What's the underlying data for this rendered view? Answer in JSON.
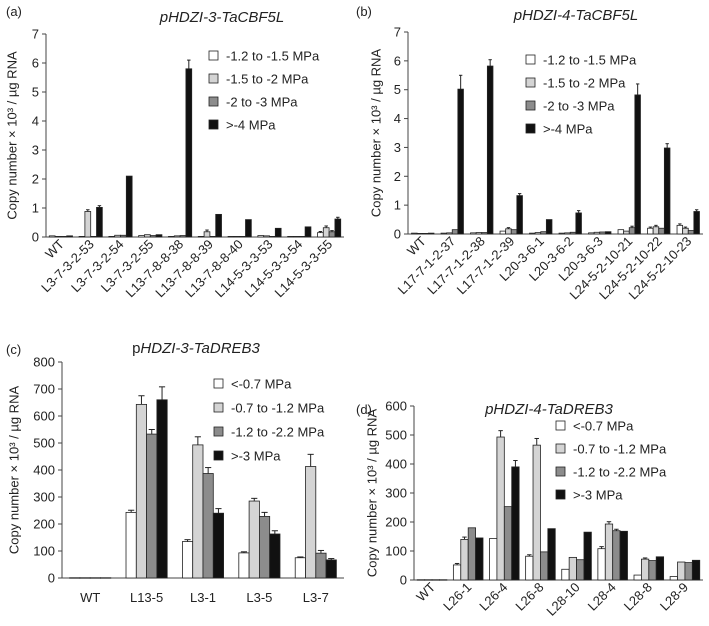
{
  "chart_data": [
    {
      "panel_label": "(a)",
      "type": "bar",
      "title": "pHDZI-3-TaCBF5L",
      "title_italic": true,
      "ylabel": "Copy number × 10³ / µg RNA",
      "ylim": [
        0,
        7
      ],
      "yticks": [
        0,
        1,
        2,
        3,
        4,
        5,
        6,
        7
      ],
      "categories": [
        "WT",
        "L3-7-3-2-53",
        "L3-7-3-2-54",
        "L3-7-3-2-55",
        "L13-7-8-8-38",
        "L13-7-8-8-39",
        "L13-7-8-8-40",
        "L14-5-3-3-53",
        "L14-5-3-3-54",
        "L14-5-3-3-55"
      ],
      "series": [
        {
          "name": "-1.2 to -1.5 MPa",
          "color": "#ffffff",
          "values": [
            0.04,
            0.02,
            0.02,
            0.05,
            0.02,
            0.02,
            0.02,
            0.05,
            0.02,
            0.15
          ],
          "errors": [
            0,
            0,
            0,
            0,
            0,
            0,
            0,
            0,
            0,
            0.04
          ]
        },
        {
          "name": "-1.5 to -2 MPa",
          "color": "#d4d4d4",
          "values": [
            0.02,
            0.88,
            0.06,
            0.08,
            0.04,
            0.18,
            0.02,
            0.04,
            0.02,
            0.32
          ],
          "errors": [
            0,
            0.06,
            0,
            0,
            0,
            0.06,
            0,
            0,
            0,
            0.06
          ]
        },
        {
          "name": "-2 to -3 MPa",
          "color": "#8c8c8c",
          "values": [
            0.02,
            0.02,
            0.06,
            0.05,
            0.05,
            0.02,
            0.02,
            0.02,
            0.02,
            0.18
          ],
          "errors": [
            0,
            0,
            0,
            0,
            0,
            0,
            0,
            0,
            0,
            0.04
          ]
        },
        {
          "name": ">-4 MPa",
          "color": "#111111",
          "values": [
            0.04,
            1.02,
            2.1,
            0.08,
            5.8,
            0.78,
            0.6,
            0.3,
            0.35,
            0.62
          ],
          "errors": [
            0,
            0.06,
            0,
            0,
            0.3,
            0,
            0,
            0,
            0,
            0.06
          ]
        }
      ]
    },
    {
      "panel_label": "(b)",
      "type": "bar",
      "title": "pHDZI-4-TaCBF5L",
      "title_italic": true,
      "ylabel": "Copy number × 10³ / µg RNA",
      "ylim": [
        0,
        7
      ],
      "yticks": [
        0,
        1,
        2,
        3,
        4,
        5,
        6,
        7
      ],
      "categories": [
        "WT",
        "L17-7-1-2-37",
        "L17-7-1-2-38",
        "L17-7-1-2-39",
        "L20-3-6-1",
        "L20-3-6-2",
        "L20-3-6-3",
        "L24-5-2-10-21",
        "L24-5-2-10-22",
        "L24-5-2-10-23"
      ],
      "series": [
        {
          "name": "-1.2 to -1.5 MPa",
          "color": "#ffffff",
          "values": [
            0.03,
            0.03,
            0.04,
            0.1,
            0.03,
            0.03,
            0.04,
            0.15,
            0.2,
            0.3
          ],
          "errors": [
            0,
            0,
            0,
            0,
            0,
            0,
            0,
            0,
            0.04,
            0.05
          ]
        },
        {
          "name": "-1.5 to -2 MPa",
          "color": "#d4d4d4",
          "values": [
            0.02,
            0.04,
            0.05,
            0.18,
            0.05,
            0.04,
            0.06,
            0.1,
            0.25,
            0.2
          ],
          "errors": [
            0,
            0,
            0,
            0.04,
            0,
            0,
            0,
            0,
            0.05,
            0.04
          ]
        },
        {
          "name": "-2 to -3 MPa",
          "color": "#8c8c8c",
          "values": [
            0.02,
            0.15,
            0.05,
            0.15,
            0.08,
            0.06,
            0.07,
            0.22,
            0.2,
            0.12
          ],
          "errors": [
            0,
            0,
            0,
            0,
            0,
            0,
            0,
            0.05,
            0,
            0
          ]
        },
        {
          "name": ">-4 MPa",
          "color": "#111111",
          "values": [
            0.03,
            5.02,
            5.82,
            1.33,
            0.5,
            0.73,
            0.08,
            4.82,
            2.98,
            0.78
          ],
          "errors": [
            0,
            0.48,
            0.22,
            0.07,
            0,
            0.08,
            0,
            0.38,
            0.15,
            0.06
          ]
        }
      ]
    },
    {
      "panel_label": "(c)",
      "type": "bar",
      "title_prefix": "p",
      "title": "HDZI-3-TaDREB3",
      "title_italic": true,
      "ylabel": "Copy number × 10³ / µg RNA",
      "ylim": [
        0,
        800
      ],
      "yticks": [
        0,
        100,
        200,
        300,
        400,
        500,
        600,
        700,
        800
      ],
      "categories": [
        "WT",
        "L13-5",
        "L3-1",
        "L3-5",
        "L3-7"
      ],
      "series": [
        {
          "name": "<-0.7 MPa",
          "color": "#ffffff",
          "values": [
            1,
            243,
            135,
            93,
            75
          ],
          "errors": [
            0,
            8,
            7,
            4,
            3
          ]
        },
        {
          "name": "-0.7 to -1.2 MPa",
          "color": "#d4d4d4",
          "values": [
            1,
            643,
            493,
            285,
            413
          ],
          "errors": [
            0,
            32,
            30,
            10,
            45
          ]
        },
        {
          "name": "-1.2 to -2.2 MPa",
          "color": "#8c8c8c",
          "values": [
            1,
            533,
            387,
            228,
            92
          ],
          "errors": [
            0,
            17,
            22,
            15,
            10
          ]
        },
        {
          "name": ">-3 MPa",
          "color": "#111111",
          "values": [
            1,
            660,
            240,
            163,
            67
          ],
          "errors": [
            0,
            48,
            17,
            12,
            5
          ]
        }
      ]
    },
    {
      "panel_label": "(d)",
      "type": "bar",
      "title": "pHDZI-4-TaDREB3",
      "title_italic": true,
      "ylabel": "Copy number × 10³ / µg RNA",
      "ylim": [
        0,
        600
      ],
      "yticks": [
        0,
        100,
        200,
        300,
        400,
        500,
        600
      ],
      "categories": [
        "WT",
        "L26-1",
        "L26-4",
        "L26-8",
        "L28-10",
        "L28-4",
        "L28-8",
        "L28-9"
      ],
      "series": [
        {
          "name": "<-0.7 MPa",
          "color": "#ffffff",
          "values": [
            1,
            52,
            143,
            82,
            37,
            108,
            17,
            12
          ],
          "errors": [
            0,
            5,
            0,
            5,
            0,
            7,
            0,
            0
          ]
        },
        {
          "name": "-0.7 to -1.2 MPa",
          "color": "#d4d4d4",
          "values": [
            1,
            140,
            493,
            465,
            78,
            193,
            72,
            62
          ],
          "errors": [
            0,
            8,
            22,
            23,
            0,
            8,
            4,
            0
          ]
        },
        {
          "name": "-1.2 to -2.2 MPa",
          "color": "#8c8c8c",
          "values": [
            1,
            180,
            253,
            97,
            70,
            170,
            67,
            60
          ],
          "errors": [
            0,
            0,
            0,
            0,
            0,
            5,
            0,
            0
          ]
        },
        {
          "name": ">-3 MPa",
          "color": "#111111",
          "values": [
            1,
            145,
            390,
            177,
            165,
            168,
            80,
            68
          ],
          "errors": [
            0,
            0,
            22,
            0,
            0,
            0,
            0,
            0
          ]
        }
      ]
    }
  ]
}
